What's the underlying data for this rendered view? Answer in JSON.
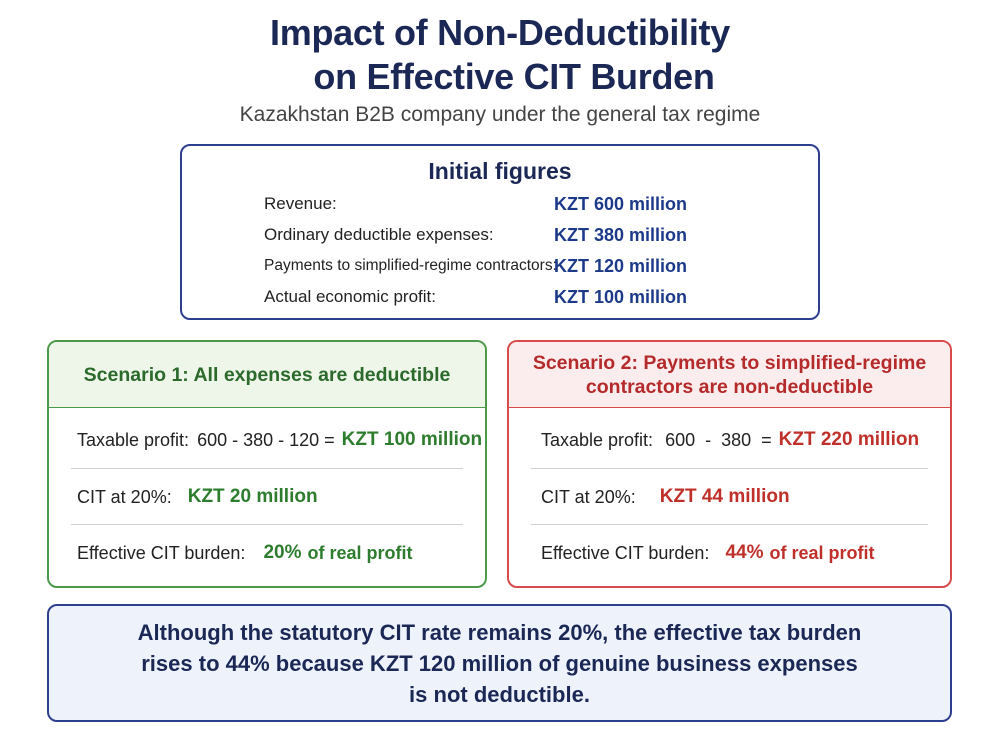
{
  "title": {
    "line1": "Impact of Non-Deductibility",
    "line2": "on Effective CIT Burden"
  },
  "subtitle": "Kazakhstan B2B company under the general tax regime",
  "initial": {
    "heading": "Initial figures",
    "rows": [
      {
        "label": "Revenue:",
        "value": "KZT 600 million"
      },
      {
        "label": "Ordinary deductible expenses:",
        "value": "KZT 380 million"
      },
      {
        "label": "Payments to simplified-regime contractors:",
        "value": "KZT 120 million"
      },
      {
        "label": "Actual economic profit:",
        "value": "KZT 100 million"
      }
    ]
  },
  "scenario1": {
    "heading": "Scenario 1:  All expenses are deductible",
    "taxable_label": "Taxable profit:",
    "taxable_calc": "600 - 380 - 120 =",
    "taxable_value": "KZT 100 million",
    "cit_label": "CIT at 20%:",
    "cit_value": "KZT 20 million",
    "burden_label": "Effective CIT burden:",
    "burden_pct": "20%",
    "burden_tail": "of real profit"
  },
  "scenario2": {
    "heading_line1": "Scenario 2: Payments to simplified-regime",
    "heading_line2": "contractors are non-deductible",
    "taxable_label": "Taxable profit:",
    "taxable_calc": "600  -  380  =",
    "taxable_value": "KZT 220 million",
    "cit_label": "CIT at 20%:",
    "cit_value": "KZT 44 million",
    "burden_label": "Effective CIT burden:",
    "burden_pct": "44%",
    "burden_tail": "of real profit"
  },
  "conclusion": {
    "line1": "Although the statutory CIT rate remains 20%, the effective tax burden",
    "line2": "rises to 44% because KZT 120 million of genuine business expenses",
    "line3": "is not deductible."
  },
  "colors": {
    "navy": "#1b2755",
    "green": "#2e7d2e",
    "red": "#c0302a",
    "blue_value": "#1d3a8a"
  }
}
